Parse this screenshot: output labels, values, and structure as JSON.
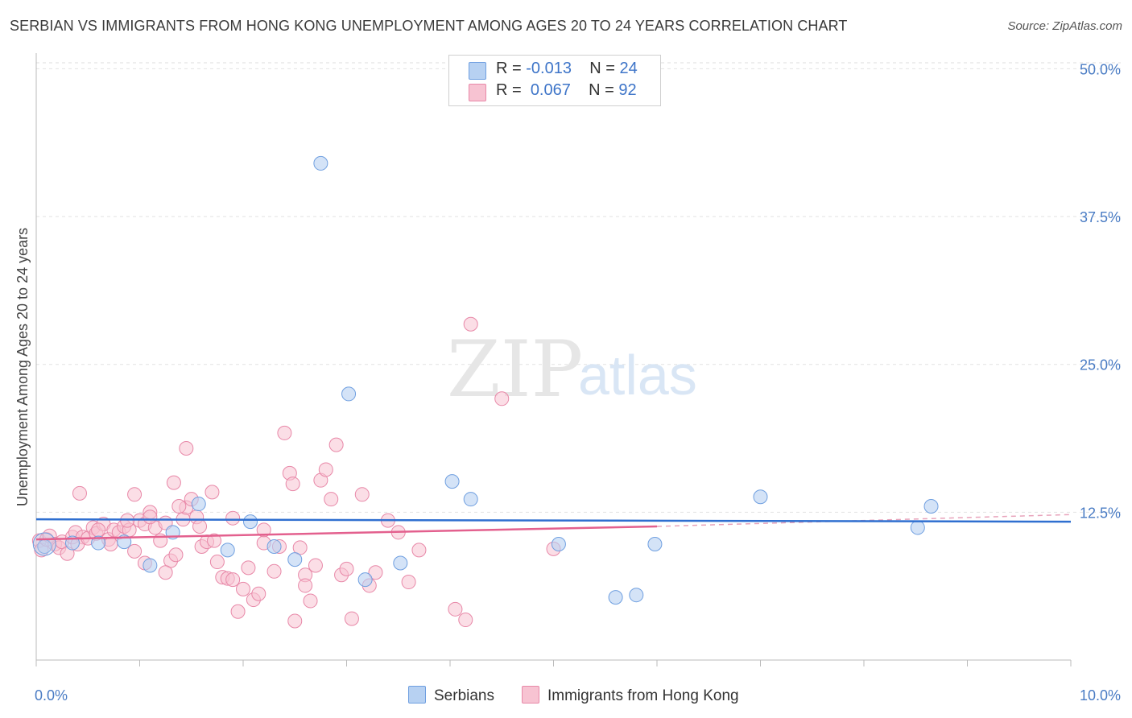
{
  "title": "SERBIAN VS IMMIGRANTS FROM HONG KONG UNEMPLOYMENT AMONG AGES 20 TO 24 YEARS CORRELATION CHART",
  "source": "Source: ZipAtlas.com",
  "colors": {
    "serbians_fill": "#b7d1f2",
    "serbians_stroke": "#6f9fe0",
    "serbians_line": "#2f6fd0",
    "hk_fill": "#f7c3d2",
    "hk_stroke": "#e888a8",
    "hk_line": "#e3608e",
    "tick_text": "#4a7cc4"
  },
  "legend": {
    "rows": [
      {
        "r_label": "R = ",
        "r_value": "-0.013",
        "n_label": "N = ",
        "n_value": "24"
      },
      {
        "r_label": "R = ",
        "r_value": "0.067",
        "n_label": "N = ",
        "n_value": "92"
      }
    ]
  },
  "bottom_legend": {
    "serbians": "Serbians",
    "hk": "Immigrants from Hong Kong"
  },
  "watermark": {
    "zip": "ZIP",
    "atlas": "atlas"
  },
  "chart_data": {
    "type": "scatter",
    "ylabel": "Unemployment Among Ages 20 to 24 years",
    "xlabel": "",
    "xlim": [
      0,
      10
    ],
    "ylim": [
      0,
      52
    ],
    "x_tick_labels": [
      "0.0%",
      "10.0%"
    ],
    "y_ticks": [
      12.5,
      25.0,
      37.5,
      50.0
    ],
    "y_tick_labels": [
      "12.5%",
      "25.0%",
      "37.5%",
      "50.0%"
    ],
    "grid": true,
    "legend_position": "top-center",
    "series": [
      {
        "name": "Serbians",
        "trend": {
          "x": [
            0,
            10
          ],
          "y": [
            11.9,
            11.7
          ]
        },
        "points": [
          [
            0.08,
            9.6
          ],
          [
            0.35,
            9.9
          ],
          [
            0.6,
            9.9
          ],
          [
            0.85,
            10.0
          ],
          [
            1.1,
            8.0
          ],
          [
            1.32,
            10.8
          ],
          [
            1.57,
            13.2
          ],
          [
            1.85,
            9.3
          ],
          [
            2.07,
            11.7
          ],
          [
            2.3,
            9.6
          ],
          [
            2.5,
            8.5
          ],
          [
            2.75,
            42.0
          ],
          [
            3.02,
            22.5
          ],
          [
            3.18,
            6.8
          ],
          [
            3.52,
            8.2
          ],
          [
            4.02,
            15.1
          ],
          [
            4.2,
            13.6
          ],
          [
            5.05,
            9.8
          ],
          [
            5.6,
            5.3
          ],
          [
            5.8,
            5.5
          ],
          [
            5.98,
            9.8
          ],
          [
            7.0,
            13.8
          ],
          [
            8.52,
            11.2
          ],
          [
            8.65,
            13.0
          ]
        ]
      },
      {
        "name": "Immigrants from Hong Kong",
        "trend": {
          "x": [
            0,
            6.0
          ],
          "y": [
            10.2,
            11.3
          ]
        },
        "trend_dashed": {
          "x": [
            6.0,
            10
          ],
          "y": [
            11.3,
            12.3
          ]
        },
        "points": [
          [
            0.03,
            10.1
          ],
          [
            0.05,
            9.3
          ],
          [
            0.1,
            10.2
          ],
          [
            0.13,
            10.5
          ],
          [
            0.18,
            9.8
          ],
          [
            0.22,
            9.5
          ],
          [
            0.25,
            10.0
          ],
          [
            0.3,
            9.0
          ],
          [
            0.35,
            10.4
          ],
          [
            0.38,
            10.8
          ],
          [
            0.45,
            10.4
          ],
          [
            0.4,
            9.8
          ],
          [
            0.5,
            10.3
          ],
          [
            0.55,
            11.2
          ],
          [
            0.58,
            10.7
          ],
          [
            0.65,
            11.5
          ],
          [
            0.7,
            10.2
          ],
          [
            0.72,
            9.8
          ],
          [
            0.75,
            11.0
          ],
          [
            0.8,
            10.8
          ],
          [
            0.85,
            11.3
          ],
          [
            0.9,
            11.0
          ],
          [
            0.95,
            9.2
          ],
          [
            1.0,
            11.8
          ],
          [
            1.05,
            11.5
          ],
          [
            1.1,
            12.5
          ],
          [
            1.15,
            11.2
          ],
          [
            1.2,
            10.1
          ],
          [
            1.25,
            11.6
          ],
          [
            1.3,
            8.4
          ],
          [
            1.35,
            8.9
          ],
          [
            1.42,
            11.9
          ],
          [
            1.45,
            12.9
          ],
          [
            1.5,
            13.6
          ],
          [
            1.55,
            12.1
          ],
          [
            1.6,
            9.6
          ],
          [
            1.65,
            10.0
          ],
          [
            1.7,
            14.2
          ],
          [
            1.75,
            8.3
          ],
          [
            1.8,
            7.0
          ],
          [
            1.85,
            6.9
          ],
          [
            1.9,
            12.0
          ],
          [
            1.95,
            4.1
          ],
          [
            2.0,
            6.0
          ],
          [
            2.05,
            7.8
          ],
          [
            2.1,
            5.1
          ],
          [
            2.15,
            5.6
          ],
          [
            2.2,
            9.9
          ],
          [
            2.3,
            7.5
          ],
          [
            2.35,
            9.6
          ],
          [
            2.4,
            19.2
          ],
          [
            2.45,
            15.8
          ],
          [
            2.5,
            3.3
          ],
          [
            2.55,
            9.5
          ],
          [
            2.6,
            7.2
          ],
          [
            2.65,
            5.0
          ],
          [
            2.7,
            8.0
          ],
          [
            2.75,
            15.2
          ],
          [
            2.8,
            16.1
          ],
          [
            2.85,
            13.6
          ],
          [
            2.9,
            18.2
          ],
          [
            2.95,
            7.2
          ],
          [
            3.0,
            7.7
          ],
          [
            3.05,
            3.5
          ],
          [
            3.15,
            14.0
          ],
          [
            3.22,
            6.3
          ],
          [
            3.28,
            7.4
          ],
          [
            3.4,
            11.8
          ],
          [
            3.5,
            10.8
          ],
          [
            3.6,
            6.6
          ],
          [
            3.7,
            9.3
          ],
          [
            4.05,
            4.3
          ],
          [
            4.15,
            3.4
          ],
          [
            4.2,
            28.4
          ],
          [
            4.5,
            22.1
          ],
          [
            5.0,
            9.4
          ],
          [
            1.45,
            17.9
          ],
          [
            1.33,
            15.0
          ],
          [
            0.42,
            14.1
          ],
          [
            0.95,
            14.0
          ],
          [
            1.72,
            10.1
          ],
          [
            1.25,
            7.4
          ],
          [
            1.9,
            6.8
          ],
          [
            2.2,
            11.0
          ],
          [
            2.6,
            6.3
          ],
          [
            2.48,
            14.9
          ],
          [
            1.05,
            8.2
          ],
          [
            0.88,
            11.8
          ],
          [
            0.6,
            11.0
          ],
          [
            1.38,
            13.0
          ],
          [
            1.1,
            12.1
          ],
          [
            1.58,
            11.3
          ]
        ]
      }
    ]
  }
}
